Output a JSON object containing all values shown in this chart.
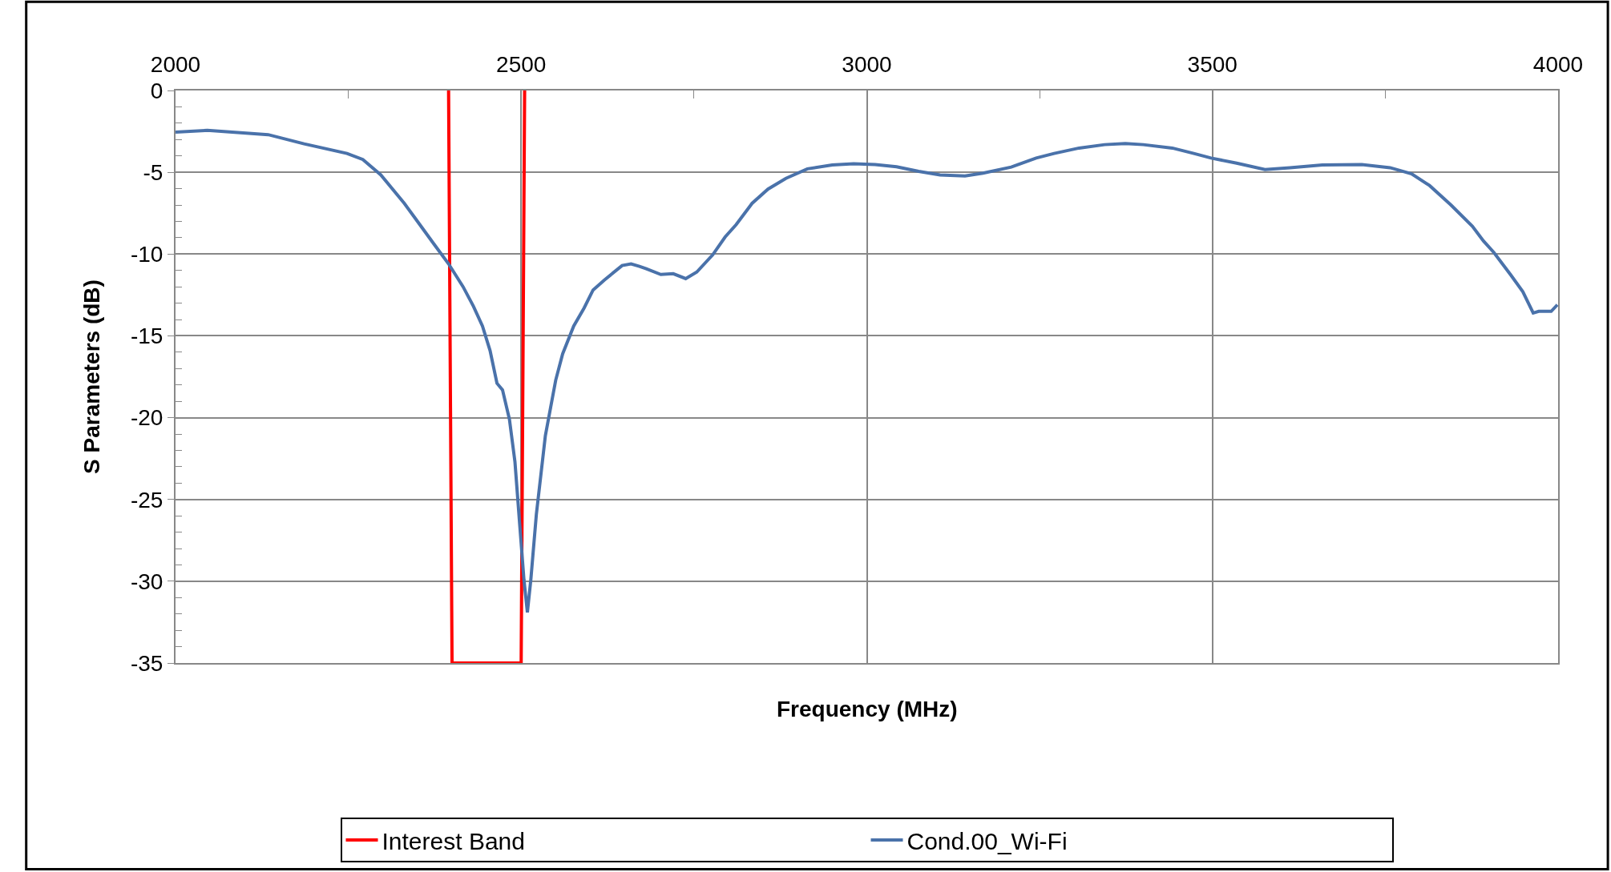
{
  "chart_data": {
    "type": "line",
    "xlabel": "Frequency (MHz)",
    "ylabel": "S Parameters (dB)",
    "xlim": [
      2000,
      4000
    ],
    "ylim": [
      -35,
      0
    ],
    "xticks": [
      2000,
      {
        "value": 2250,
        "label": null
      },
      2500,
      {
        "value": 2750,
        "label": null
      },
      3000,
      {
        "value": 3250,
        "label": null
      },
      3500,
      {
        "value": 3750,
        "label": null
      },
      4000
    ],
    "yticks": [
      0,
      {
        "value": -1,
        "label": null
      },
      {
        "value": -2,
        "label": null
      },
      {
        "value": -3,
        "label": null
      },
      {
        "value": -4,
        "label": null
      },
      -5,
      {
        "value": -6,
        "label": null
      },
      {
        "value": -7,
        "label": null
      },
      {
        "value": -8,
        "label": null
      },
      {
        "value": -9,
        "label": null
      },
      -10,
      {
        "value": -11,
        "label": null
      },
      {
        "value": -12,
        "label": null
      },
      {
        "value": -13,
        "label": null
      },
      {
        "value": -14,
        "label": null
      },
      -15,
      {
        "value": -16,
        "label": null
      },
      {
        "value": -17,
        "label": null
      },
      {
        "value": -18,
        "label": null
      },
      {
        "value": -19,
        "label": null
      },
      -20,
      {
        "value": -21,
        "label": null
      },
      {
        "value": -22,
        "label": null
      },
      {
        "value": -23,
        "label": null
      },
      {
        "value": -24,
        "label": null
      },
      -25,
      {
        "value": -26,
        "label": null
      },
      {
        "value": -27,
        "label": null
      },
      {
        "value": -28,
        "label": null
      },
      {
        "value": -29,
        "label": null
      },
      -30,
      {
        "value": -31,
        "label": null
      },
      {
        "value": -32,
        "label": null
      },
      {
        "value": -33,
        "label": null
      },
      {
        "value": -34,
        "label": null
      },
      -35
    ],
    "grid": true,
    "legend": "bottom",
    "marker": "none",
    "line_style": "solid",
    "series": [
      {
        "name": "Interest Band",
        "color": "#ff0000",
        "x": [
          2395,
          2400,
          2500,
          2505
        ],
        "values": [
          0,
          -35,
          -35,
          0
        ]
      },
      {
        "name": "Cond.00_Wi-Fi",
        "color": "#4a72aa",
        "x": [
          2000,
          2046,
          2134,
          2186,
          2248,
          2271,
          2297,
          2331,
          2346,
          2374,
          2395,
          2416,
          2431,
          2444,
          2455,
          2465,
          2473,
          2483,
          2491,
          2498,
          2504,
          2509,
          2514,
          2522,
          2535,
          2550,
          2560,
          2576,
          2591,
          2604,
          2620,
          2646,
          2659,
          2671,
          2681,
          2702,
          2720,
          2738,
          2754,
          2777,
          2795,
          2811,
          2834,
          2857,
          2883,
          2914,
          2950,
          2981,
          3012,
          3043,
          3075,
          3106,
          3142,
          3168,
          3209,
          3245,
          3271,
          3307,
          3344,
          3374,
          3400,
          3442,
          3473,
          3498,
          3535,
          3576,
          3612,
          3659,
          3716,
          3757,
          3788,
          3814,
          3845,
          3876,
          3892,
          3907,
          3931,
          3949,
          3964,
          3972,
          3990,
          3999
        ],
        "values": [
          -2.55,
          -2.44,
          -2.7,
          -3.26,
          -3.85,
          -4.22,
          -5.16,
          -6.9,
          -7.77,
          -9.4,
          -10.6,
          -12.0,
          -13.2,
          -14.4,
          -15.9,
          -17.9,
          -18.3,
          -20.1,
          -22.7,
          -26.6,
          -29.9,
          -31.9,
          -29.9,
          -25.9,
          -21.1,
          -17.7,
          -16.1,
          -14.4,
          -13.3,
          -12.2,
          -11.6,
          -10.7,
          -10.6,
          -10.75,
          -10.9,
          -11.25,
          -11.2,
          -11.5,
          -11.1,
          -10.05,
          -8.96,
          -8.2,
          -6.9,
          -6.03,
          -5.37,
          -4.79,
          -4.55,
          -4.48,
          -4.53,
          -4.66,
          -4.94,
          -5.16,
          -5.22,
          -5.05,
          -4.68,
          -4.13,
          -3.85,
          -3.52,
          -3.31,
          -3.24,
          -3.31,
          -3.52,
          -3.85,
          -4.13,
          -4.44,
          -4.83,
          -4.72,
          -4.55,
          -4.53,
          -4.72,
          -5.09,
          -5.81,
          -7.0,
          -8.3,
          -9.2,
          -9.9,
          -11.25,
          -12.3,
          -13.6,
          -13.5,
          -13.5,
          -13.1
        ]
      }
    ]
  }
}
